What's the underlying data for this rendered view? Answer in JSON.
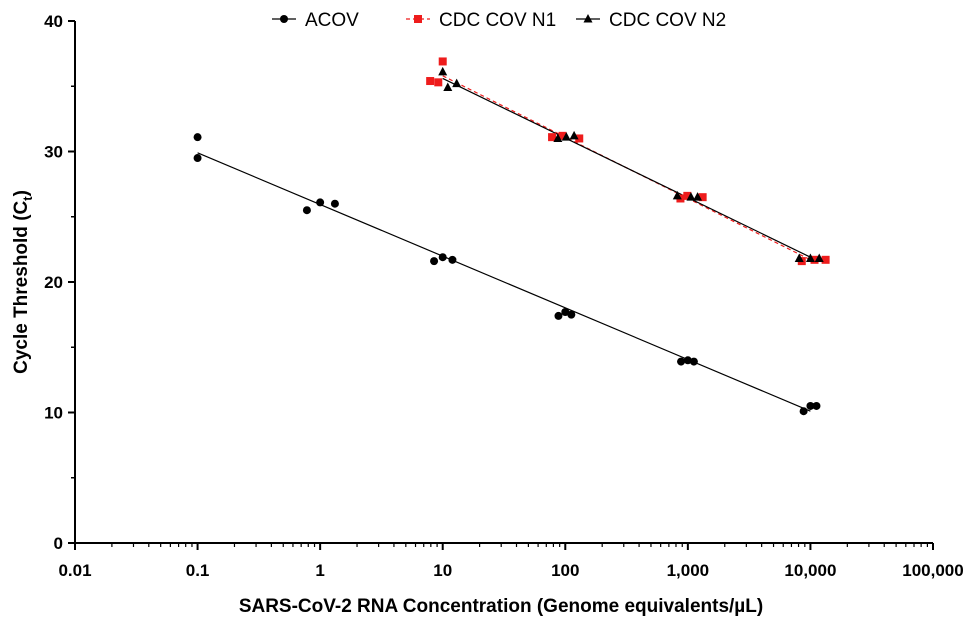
{
  "chart_data": {
    "type": "scatter",
    "xlabel": "SARS-CoV-2 RNA Concentration (Genome equivalents/µL)",
    "ylabel_main": "Cycle Threshold (C",
    "ylabel_sub": "t",
    "ylabel_close": ")",
    "xscale": "log",
    "xlim": [
      0.01,
      100000
    ],
    "ylim": [
      0,
      40
    ],
    "x_ticks": [
      0.01,
      0.1,
      1,
      10,
      100,
      1000,
      10000,
      100000
    ],
    "x_tick_labels": [
      "0.01",
      "0.1",
      "1",
      "10",
      "100",
      "1,000",
      "10,000",
      "100,000"
    ],
    "y_ticks": [
      0,
      10,
      20,
      30,
      40
    ],
    "y_tick_labels": [
      "0",
      "10",
      "20",
      "30",
      "40"
    ],
    "grid": false,
    "legend_position": "top",
    "series": [
      {
        "name": "ACOV",
        "color": "#000000",
        "marker": "circle",
        "line_style": "solid",
        "points": [
          [
            0.1,
            31.1
          ],
          [
            0.1,
            29.5
          ],
          [
            0.78,
            25.5
          ],
          [
            1.0,
            26.1
          ],
          [
            1.32,
            26.0
          ],
          [
            8.5,
            21.6
          ],
          [
            10.0,
            21.9
          ],
          [
            12.0,
            21.7
          ],
          [
            88,
            17.4
          ],
          [
            100,
            17.7
          ],
          [
            112,
            17.5
          ],
          [
            880,
            13.9
          ],
          [
            1000,
            14.0
          ],
          [
            1120,
            13.9
          ],
          [
            8800,
            10.1
          ],
          [
            10000,
            10.5
          ],
          [
            11200,
            10.5
          ]
        ],
        "fit": [
          [
            0.1,
            29.9
          ],
          [
            10000,
            10.1
          ]
        ]
      },
      {
        "name": "CDC COV N1",
        "color": "#ee1c1c",
        "marker": "square",
        "line_style": "dashed",
        "points": [
          [
            7.9,
            35.4
          ],
          [
            9.2,
            35.3
          ],
          [
            10.0,
            36.9
          ],
          [
            78,
            31.1
          ],
          [
            95,
            31.2
          ],
          [
            130,
            31.0
          ],
          [
            870,
            26.4
          ],
          [
            990,
            26.6
          ],
          [
            1320,
            26.5
          ],
          [
            8500,
            21.6
          ],
          [
            10800,
            21.7
          ],
          [
            13300,
            21.7
          ]
        ],
        "fit": [
          [
            10,
            35.8
          ],
          [
            10000,
            21.7
          ]
        ]
      },
      {
        "name": "CDC COV N2",
        "color": "#000000",
        "marker": "triangle",
        "line_style": "solid",
        "points": [
          [
            10.0,
            36.1
          ],
          [
            11.0,
            34.9
          ],
          [
            13.0,
            35.2
          ],
          [
            87,
            31.0
          ],
          [
            102,
            31.1
          ],
          [
            118,
            31.2
          ],
          [
            820,
            26.6
          ],
          [
            1060,
            26.5
          ],
          [
            1200,
            26.5
          ],
          [
            8100,
            21.8
          ],
          [
            10000,
            21.8
          ],
          [
            11800,
            21.8
          ]
        ],
        "fit": [
          [
            10,
            35.6
          ],
          [
            10000,
            21.9
          ]
        ]
      }
    ]
  }
}
